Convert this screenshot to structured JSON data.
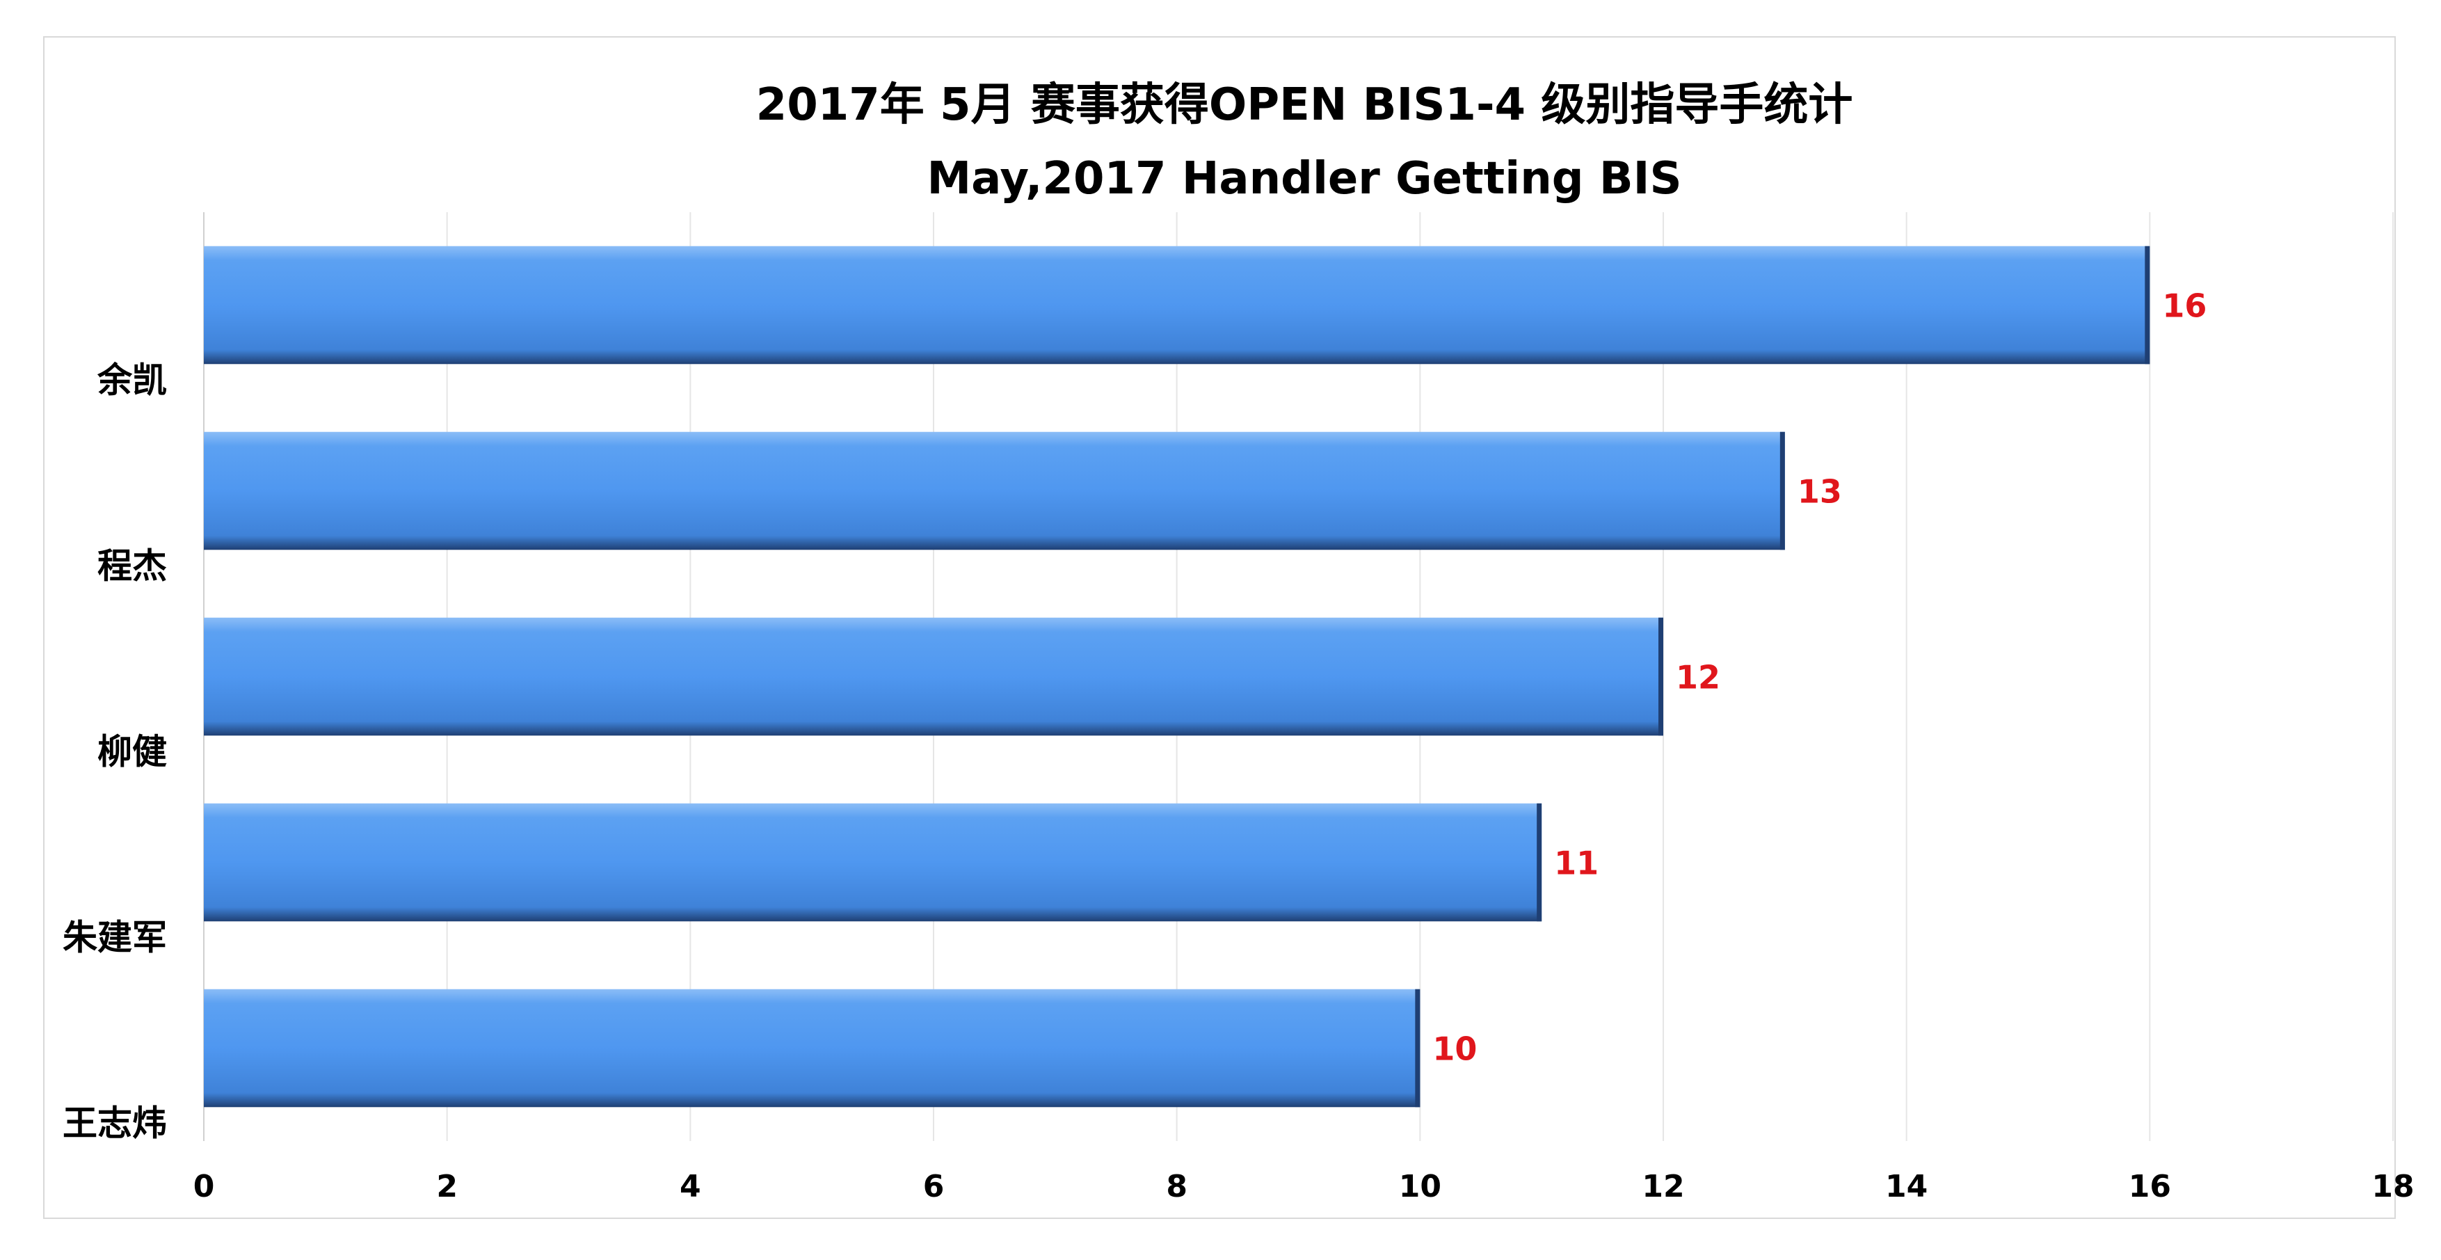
{
  "chart_data": {
    "type": "bar",
    "orientation": "horizontal",
    "title": "2017年  5月 赛事获得OPEN BIS1-4 级别指导手统计",
    "subtitle": "May,2017 Handler Getting BIS",
    "categories": [
      "余凯",
      "程杰",
      "柳健",
      "朱建军",
      "王志炜"
    ],
    "values": [
      16,
      13,
      12,
      11,
      10
    ],
    "xlim": [
      0,
      18
    ],
    "xticks": [
      0,
      2,
      4,
      6,
      8,
      10,
      12,
      14,
      16,
      18
    ],
    "grid": true,
    "legend": "none",
    "data_labels": true,
    "colors": {
      "bar": "#4F97F0",
      "bar_light": "#8BBDF7",
      "bar_dark": "#1F3F73",
      "data_label": "#E0161C",
      "grid": "#e6e6e6"
    }
  }
}
